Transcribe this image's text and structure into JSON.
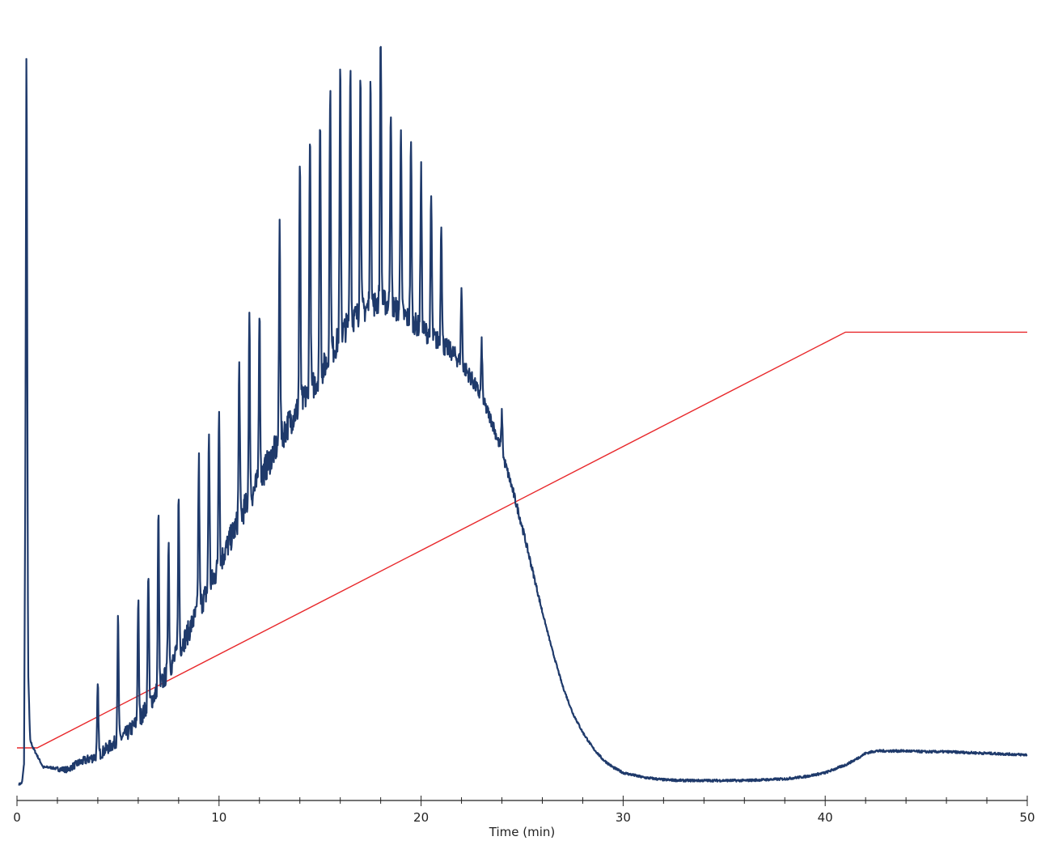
{
  "chart_data": {
    "type": "line",
    "title": "",
    "xlabel": "Time (min)",
    "ylabel": "",
    "xlim": [
      0,
      50
    ],
    "ylim": [
      0,
      100
    ],
    "x_major_ticks": [
      0,
      10,
      20,
      30,
      40,
      50
    ],
    "x_minor_step": 2,
    "x_tick_labels": [
      "0",
      "10",
      "20",
      "30",
      "40",
      "50"
    ],
    "grid": false,
    "legend": "none",
    "colors": {
      "chromatogram": "#1f3a6b",
      "gradient": "#e8282b",
      "axis": "#222222"
    },
    "series": [
      {
        "kind": "chromatogram",
        "color": "#1f3a6b",
        "x": [
          0.1,
          0.25,
          0.35,
          0.42,
          0.47,
          0.55,
          0.65,
          0.8,
          1.0,
          1.3,
          1.6,
          2.0,
          2.5,
          3.0,
          3.5,
          4.0,
          4.5,
          5.0,
          5.5,
          6.0,
          6.5,
          7.0,
          7.5,
          8.0,
          8.5,
          9.0,
          9.5,
          10.0,
          10.5,
          11.0,
          11.5,
          12.0,
          12.5,
          13.0,
          13.5,
          14.0,
          14.5,
          15.0,
          15.5,
          16.0,
          16.5,
          17.0,
          17.5,
          18.0,
          18.5,
          19.0,
          19.5,
          20.0,
          20.5,
          21.0,
          21.5,
          22.0,
          22.5,
          23.0,
          23.5,
          24.0,
          24.5,
          25.0,
          25.5,
          26.0,
          26.5,
          27.0,
          27.5,
          28.0,
          28.5,
          29.0,
          29.5,
          30.0,
          31.0,
          32.0,
          33.0,
          34.0,
          35.0,
          36.0,
          37.0,
          38.0,
          39.0,
          40.0,
          41.0,
          41.5,
          42.0,
          42.5,
          43.0,
          44.0,
          45.0,
          46.0,
          47.0,
          48.0,
          49.0,
          50.0
        ],
        "y": [
          0.3,
          0.5,
          3.0,
          45.0,
          99.5,
          15.0,
          6.0,
          5.0,
          4.0,
          2.5,
          2.5,
          2.3,
          2.2,
          3.0,
          3.5,
          4.0,
          5.0,
          6.0,
          7.0,
          8.5,
          10.5,
          12.5,
          15.0,
          17.5,
          20.0,
          23.0,
          25.5,
          28.5,
          31.5,
          34.5,
          37.0,
          39.5,
          42.0,
          44.5,
          47.0,
          49.0,
          51.0,
          53.0,
          55.5,
          58.0,
          60.0,
          61.0,
          62.0,
          62.5,
          62.0,
          61.0,
          60.0,
          59.0,
          58.0,
          57.0,
          56.0,
          54.5,
          52.5,
          50.0,
          47.0,
          43.0,
          38.5,
          33.5,
          28.0,
          22.5,
          17.5,
          13.0,
          9.5,
          7.0,
          5.0,
          3.5,
          2.5,
          1.8,
          1.2,
          0.9,
          0.8,
          0.8,
          0.8,
          0.8,
          0.9,
          1.0,
          1.3,
          1.8,
          2.8,
          3.5,
          4.3,
          4.6,
          4.6,
          4.6,
          4.5,
          4.5,
          4.4,
          4.3,
          4.2,
          4.1
        ],
        "peaks": [
          {
            "x": 4.0,
            "y": 13.0
          },
          {
            "x": 5.0,
            "y": 21.5
          },
          {
            "x": 6.0,
            "y": 24.0
          },
          {
            "x": 6.5,
            "y": 28.0
          },
          {
            "x": 7.0,
            "y": 35.0
          },
          {
            "x": 7.5,
            "y": 32.0
          },
          {
            "x": 8.0,
            "y": 37.0
          },
          {
            "x": 9.0,
            "y": 42.0
          },
          {
            "x": 9.5,
            "y": 45.5
          },
          {
            "x": 10.0,
            "y": 49.5
          },
          {
            "x": 11.0,
            "y": 54.0
          },
          {
            "x": 11.5,
            "y": 60.0
          },
          {
            "x": 12.0,
            "y": 62.0
          },
          {
            "x": 13.0,
            "y": 72.5
          },
          {
            "x": 14.0,
            "y": 80.0
          },
          {
            "x": 14.5,
            "y": 85.0
          },
          {
            "x": 15.0,
            "y": 87.0
          },
          {
            "x": 15.5,
            "y": 90.0
          },
          {
            "x": 16.0,
            "y": 92.0
          },
          {
            "x": 16.5,
            "y": 93.5
          },
          {
            "x": 17.0,
            "y": 92.0
          },
          {
            "x": 17.5,
            "y": 91.0
          },
          {
            "x": 18.0,
            "y": 97.5
          },
          {
            "x": 18.5,
            "y": 88.0
          },
          {
            "x": 19.0,
            "y": 86.0
          },
          {
            "x": 19.5,
            "y": 82.5
          },
          {
            "x": 20.0,
            "y": 79.5
          },
          {
            "x": 20.5,
            "y": 76.0
          },
          {
            "x": 21.0,
            "y": 73.0
          },
          {
            "x": 22.0,
            "y": 64.0
          },
          {
            "x": 23.0,
            "y": 57.0
          },
          {
            "x": 24.0,
            "y": 48.0
          }
        ]
      },
      {
        "kind": "gradient",
        "color": "#e8282b",
        "x": [
          0.0,
          1.0,
          41.0,
          50.0
        ],
        "y": [
          5.0,
          5.0,
          58.5,
          58.5
        ]
      }
    ]
  }
}
